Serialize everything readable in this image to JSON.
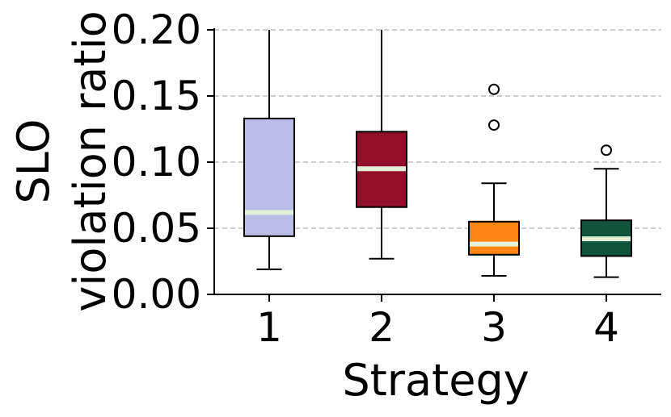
{
  "chart_data": {
    "type": "box",
    "xlabel": "Strategy",
    "ylabel_lines": [
      "SLO",
      "violation ratio"
    ],
    "ylim": [
      0.0,
      0.2
    ],
    "yticks": [
      "0.00",
      "0.05",
      "0.10",
      "0.15",
      "0.20"
    ],
    "ytick_values": [
      0.0,
      0.05,
      0.1,
      0.15,
      0.2
    ],
    "grid": "horizontal dashed",
    "categories": [
      "1",
      "2",
      "3",
      "4"
    ],
    "boxes": [
      {
        "category": "1",
        "whisker_low": 0.019,
        "q1": 0.044,
        "median": 0.062,
        "q3": 0.133,
        "whisker_high": 0.2,
        "outliers": [],
        "color": "#bcbde6"
      },
      {
        "category": "2",
        "whisker_low": 0.027,
        "q1": 0.066,
        "median": 0.095,
        "q3": 0.123,
        "whisker_high": 0.2,
        "outliers": [],
        "color": "#920f2a"
      },
      {
        "category": "3",
        "whisker_low": 0.014,
        "q1": 0.03,
        "median": 0.038,
        "q3": 0.055,
        "whisker_high": 0.084,
        "outliers": [
          0.128,
          0.155
        ],
        "color": "#ff8413"
      },
      {
        "category": "4",
        "whisker_low": 0.013,
        "q1": 0.029,
        "median": 0.042,
        "q3": 0.056,
        "whisker_high": 0.095,
        "outliers": [
          0.109
        ],
        "color": "#11543c"
      }
    ],
    "median_color": "#e2efd9"
  }
}
